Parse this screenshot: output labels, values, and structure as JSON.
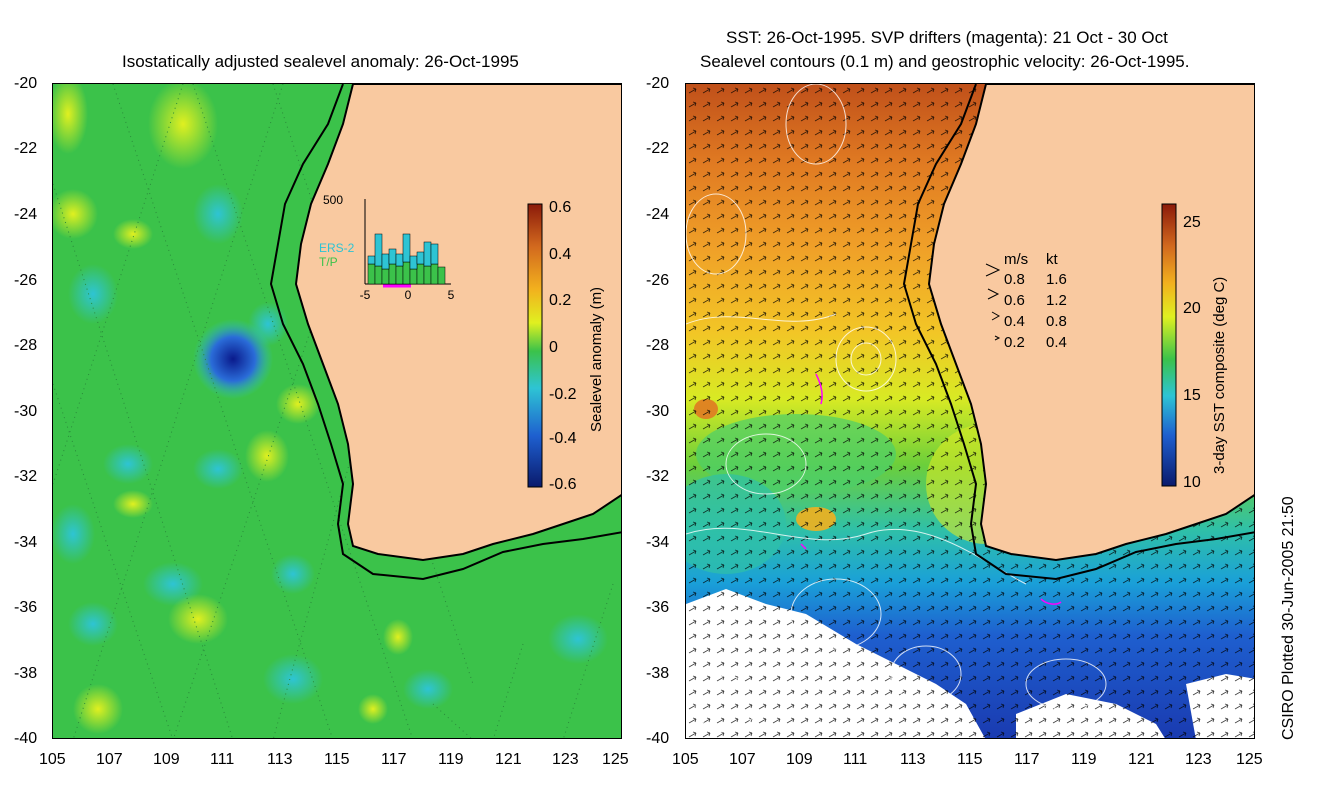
{
  "left": {
    "title": "Isostatically adjusted sealevel anomaly: 26-Oct-1995",
    "colorbar_label": "Sealevel anomaly (m)",
    "colorbar_ticks": [
      "0.6",
      "0.4",
      "0.2",
      "0",
      "-0.2",
      "-0.4",
      "-0.6"
    ],
    "inset": {
      "ymax_label": "500",
      "series1": "ERS-2",
      "series2": "T/P",
      "x_ticks": [
        "-5",
        "0",
        "5"
      ]
    }
  },
  "right": {
    "title_line1": "SST: 26-Oct-1995. SVP drifters (magenta): 21 Oct - 30 Oct",
    "title_line2": "Sealevel contours (0.1 m) and geostrophic velocity: 26-Oct-1995.",
    "colorbar_label": "3-day SST composite (deg C)",
    "colorbar_ticks": [
      "25",
      "20",
      "15",
      "10"
    ],
    "legend": {
      "header_ms": "m/s",
      "header_kt": "kt",
      "rows": [
        {
          "ms": "0.8",
          "kt": "1.6"
        },
        {
          "ms": "0.6",
          "kt": "1.2"
        },
        {
          "ms": "0.4",
          "kt": "0.8"
        },
        {
          "ms": "0.2",
          "kt": "0.4"
        }
      ]
    }
  },
  "axes": {
    "y_ticks": [
      "-20",
      "-22",
      "-24",
      "-26",
      "-28",
      "-30",
      "-32",
      "-34",
      "-36",
      "-38",
      "-40"
    ],
    "x_ticks": [
      "105",
      "107",
      "109",
      "111",
      "113",
      "115",
      "117",
      "119",
      "121",
      "123",
      "125"
    ]
  },
  "footer": "CSIRO Plotted 30-Jun-2005 21:50",
  "colors": {
    "land": "#f9c9a0",
    "ocean_green": "#3bc24a",
    "warm_sst": "#d2691e",
    "cool_sst": "#1e5fcf",
    "cloud": "#ffffff",
    "drifter": "#ff00ff"
  }
}
